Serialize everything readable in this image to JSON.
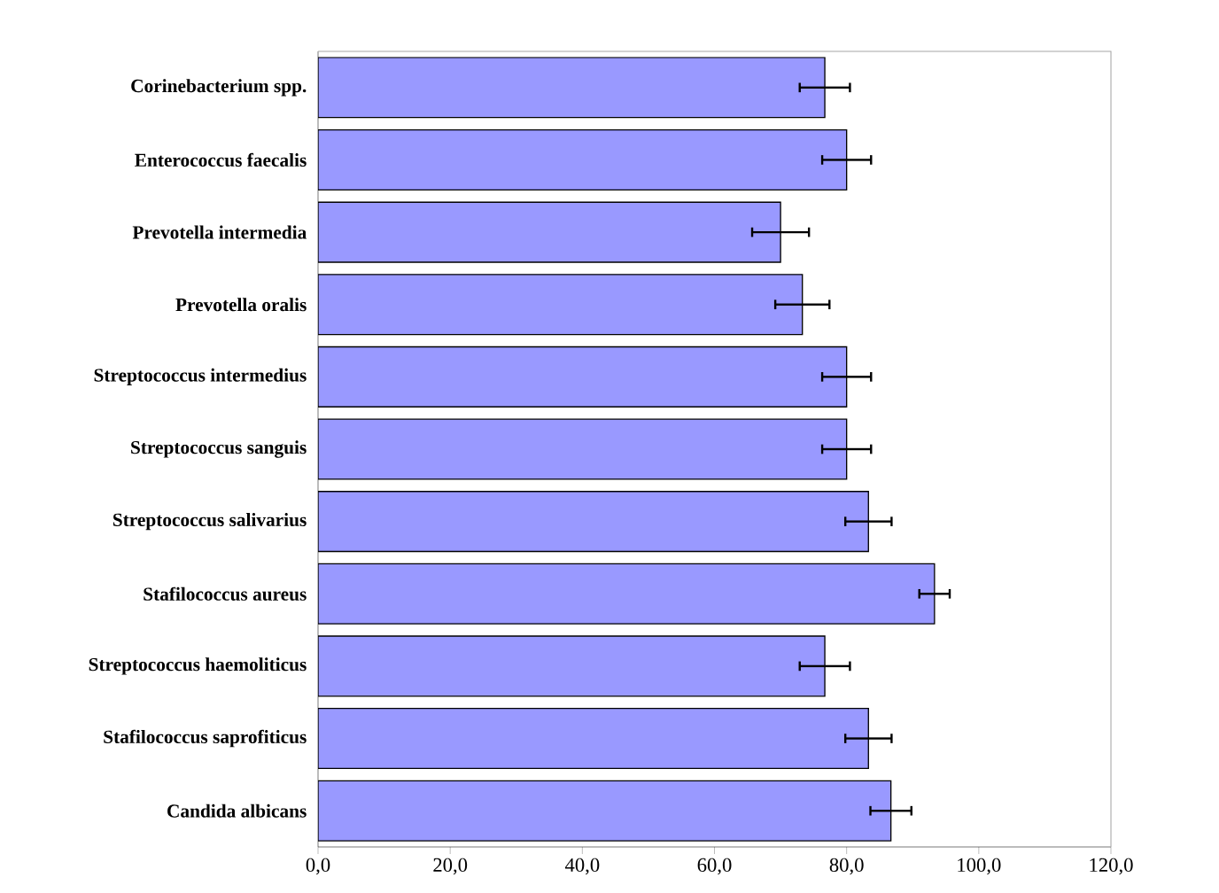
{
  "chart_data": {
    "type": "bar",
    "orientation": "horizontal",
    "categories": [
      "Corinebacterium spp.",
      "Enterococcus faecalis",
      "Prevotella intermedia",
      "Prevotella oralis",
      "Streptococcus intermedius",
      "Streptococcus sanguis",
      "Streptococcus salivarius",
      "Stafilococcus aureus",
      "Streptococcus haemoliticus",
      "Stafilococcus saprofiticus",
      "Candida albicans"
    ],
    "values": [
      76.7,
      80.0,
      70.0,
      73.3,
      80.0,
      80.0,
      83.3,
      93.3,
      76.7,
      83.3,
      86.7
    ],
    "errors": [
      3.8,
      3.7,
      4.3,
      4.1,
      3.7,
      3.7,
      3.5,
      2.3,
      3.8,
      3.5,
      3.1
    ],
    "color": "#9999ff",
    "xlim": [
      0,
      120
    ],
    "xticks": [
      {
        "value": 0,
        "label": "0,0"
      },
      {
        "value": 20,
        "label": "20,0"
      },
      {
        "value": 40,
        "label": "40,0"
      },
      {
        "value": 60,
        "label": "60,0"
      },
      {
        "value": 80,
        "label": "80,0"
      },
      {
        "value": 100,
        "label": "100,0"
      },
      {
        "value": 120,
        "label": "120,0"
      }
    ]
  }
}
